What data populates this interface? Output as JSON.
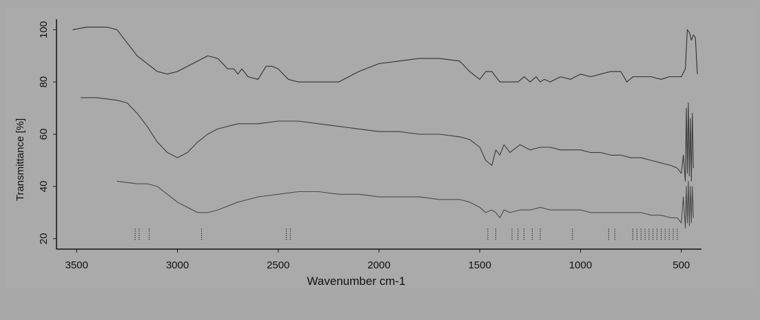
{
  "chart_data": {
    "type": "line",
    "xlabel": "Wavenumber cm-1",
    "ylabel": "Transmittance [%]",
    "xlim": [
      3600,
      400
    ],
    "ylim": [
      16,
      104
    ],
    "x_reversed": true,
    "x_ticks": [
      3500,
      3000,
      2500,
      2000,
      1500,
      1000,
      500
    ],
    "y_ticks": [
      20,
      40,
      60,
      80,
      100
    ],
    "grid": false,
    "legend": "none",
    "series": [
      {
        "color": "#2e2e2e",
        "x": [
          3520,
          3450,
          3350,
          3300,
          3200,
          3100,
          3050,
          3000,
          2900,
          2850,
          2800,
          2750,
          2720,
          2700,
          2680,
          2650,
          2600,
          2560,
          2530,
          2500,
          2450,
          2400,
          2350,
          2300,
          2250,
          2200,
          2100,
          2000,
          1900,
          1800,
          1700,
          1600,
          1550,
          1500,
          1470,
          1440,
          1400,
          1360,
          1310,
          1280,
          1250,
          1220,
          1200,
          1180,
          1150,
          1100,
          1050,
          1000,
          950,
          900,
          850,
          800,
          770,
          740,
          700,
          650,
          600,
          560,
          520,
          500,
          480,
          470,
          460,
          450,
          440,
          430,
          420
        ],
        "y": [
          100,
          101,
          101,
          100,
          90,
          84,
          83,
          84,
          88,
          90,
          89,
          85,
          85,
          83,
          85,
          82,
          81,
          86,
          86,
          85,
          81,
          80,
          80,
          80,
          80,
          80,
          84,
          87,
          88,
          89,
          89,
          88,
          84,
          81,
          84,
          84,
          80,
          80,
          80,
          82,
          80,
          82,
          80,
          81,
          80,
          82,
          81,
          83,
          82,
          83,
          84,
          84,
          80,
          82,
          82,
          82,
          81,
          82,
          82,
          82,
          85,
          100,
          99,
          96,
          98,
          97,
          83
        ]
      },
      {
        "color": "#3a3a3a",
        "x": [
          3480,
          3400,
          3300,
          3250,
          3200,
          3150,
          3100,
          3050,
          3000,
          2950,
          2900,
          2850,
          2800,
          2700,
          2650,
          2600,
          2500,
          2400,
          2300,
          2200,
          2100,
          2000,
          1900,
          1800,
          1700,
          1600,
          1550,
          1500,
          1470,
          1440,
          1420,
          1400,
          1380,
          1350,
          1300,
          1250,
          1200,
          1150,
          1100,
          1050,
          1000,
          950,
          900,
          850,
          800,
          750,
          700,
          650,
          600,
          550,
          520,
          500,
          490,
          480,
          475,
          470,
          465,
          460,
          455,
          450,
          445,
          440
        ],
        "y": [
          74,
          74,
          73,
          72,
          68,
          63,
          57,
          53,
          51,
          53,
          57,
          60,
          62,
          64,
          64,
          64,
          65,
          65,
          64,
          63,
          62,
          61,
          61,
          60,
          60,
          59,
          58,
          55,
          50,
          48,
          54,
          52,
          56,
          53,
          56,
          54,
          55,
          55,
          54,
          54,
          54,
          53,
          53,
          52,
          52,
          51,
          51,
          50,
          49,
          48,
          47,
          45,
          52,
          42,
          70,
          45,
          72,
          44,
          66,
          42,
          68,
          47
        ]
      },
      {
        "color": "#4a4a4a",
        "x": [
          3300,
          3200,
          3150,
          3100,
          3050,
          3000,
          2950,
          2900,
          2850,
          2800,
          2700,
          2600,
          2500,
          2400,
          2300,
          2200,
          2100,
          2000,
          1900,
          1800,
          1700,
          1600,
          1550,
          1500,
          1470,
          1440,
          1420,
          1400,
          1380,
          1350,
          1300,
          1250,
          1200,
          1150,
          1100,
          1050,
          1000,
          950,
          900,
          850,
          800,
          750,
          700,
          650,
          600,
          550,
          520,
          500,
          490,
          480,
          475,
          470,
          465,
          460,
          455,
          450,
          445,
          440
        ],
        "y": [
          42,
          41,
          41,
          40,
          37,
          34,
          32,
          30,
          30,
          31,
          34,
          36,
          37,
          38,
          38,
          37,
          37,
          36,
          36,
          36,
          35,
          35,
          34,
          32,
          30,
          31,
          30,
          28,
          31,
          30,
          31,
          31,
          32,
          31,
          31,
          31,
          31,
          30,
          30,
          30,
          30,
          30,
          30,
          29,
          29,
          28,
          28,
          26,
          36,
          24,
          40,
          26,
          42,
          25,
          40,
          26,
          40,
          28
        ]
      }
    ],
    "peak_marker_positions": [
      3210,
      3190,
      3140,
      2880,
      2460,
      2440,
      1460,
      1420,
      1340,
      1310,
      1280,
      1240,
      1200,
      1040,
      860,
      830,
      740,
      720,
      700,
      680,
      660,
      640,
      620,
      600,
      580,
      560,
      540,
      520
    ]
  }
}
